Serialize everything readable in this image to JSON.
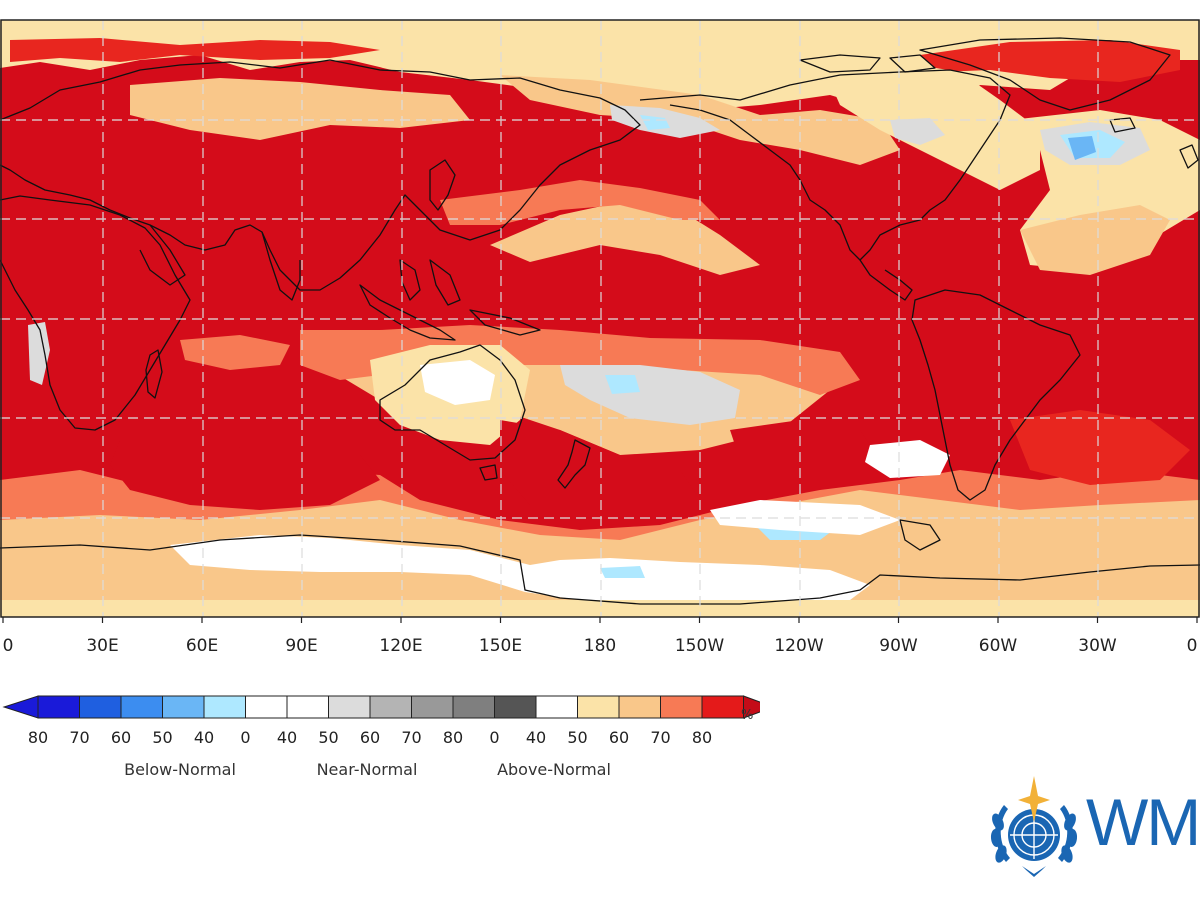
{
  "map": {
    "type": "heatmap",
    "projection": "equirectangular",
    "longitude_range": [
      "0",
      "0"
    ],
    "lon_labels": [
      "0",
      "30E",
      "60E",
      "90E",
      "120E",
      "150E",
      "180",
      "150W",
      "120W",
      "90W",
      "60W",
      "30W",
      "0"
    ],
    "gridlines": "dashed"
  },
  "legend": {
    "unit": "%",
    "bins": [
      {
        "label": "80",
        "color": "#1a1ad9"
      },
      {
        "label": "70",
        "color": "#1f5fe0"
      },
      {
        "label": "60",
        "color": "#3c8df0"
      },
      {
        "label": "50",
        "color": "#6ab6f5"
      },
      {
        "label": "40",
        "color": "#aee8ff"
      },
      {
        "label": "0",
        "color": "#ffffff"
      },
      {
        "label": "40",
        "color": "#ffffff"
      },
      {
        "label": "50",
        "color": "#dcdcdc"
      },
      {
        "label": "60",
        "color": "#b4b4b4"
      },
      {
        "label": "70",
        "color": "#999999"
      },
      {
        "label": "80",
        "color": "#7f7f7f"
      },
      {
        "label": "0",
        "color": "#555555"
      },
      {
        "label": "40",
        "color": "#ffffff"
      },
      {
        "label": "50",
        "color": "#fbe3a8"
      },
      {
        "label": "60",
        "color": "#f9c78a"
      },
      {
        "label": "70",
        "color": "#f77a55"
      },
      {
        "label": "80",
        "color": "#e41a1a"
      }
    ],
    "end_color": "#c40c18",
    "categories": [
      "Below-Normal",
      "Near-Normal",
      "Above-Normal"
    ]
  },
  "logo": {
    "text": "WM",
    "emblem": "wmo-emblem-icon"
  },
  "colors": {
    "strong_red": "#d40c1a",
    "red": "#e8261f",
    "salmon": "#f77a55",
    "peach": "#f9c78a",
    "cream": "#fbe3a8",
    "grey": "#dcdcdc",
    "light_blue": "#aee8ff",
    "blue": "#6ab6f5",
    "white": "#ffffff"
  }
}
